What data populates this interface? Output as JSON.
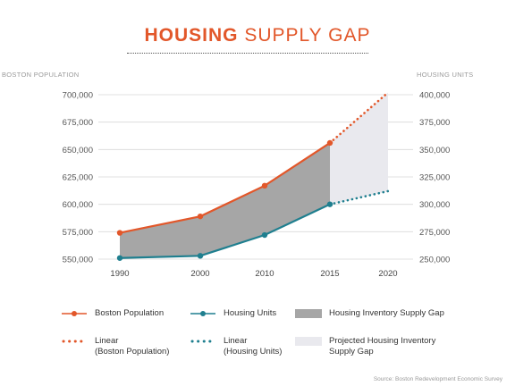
{
  "title": {
    "bold": "HOUSING",
    "light": "SUPPLY GAP"
  },
  "left_axis_title": "BOSTON POPULATION",
  "right_axis_title": "HOUSING UNITS",
  "source": "Source: Boston Redevelopment Economic Survey",
  "colors": {
    "population": "#e2572a",
    "housing": "#1f7f8f",
    "gap": "#a6a6a6",
    "projected_gap": "#e9e9ee"
  },
  "legend": [
    {
      "label": "Boston Population",
      "sub": "",
      "type": "line-dot",
      "color": "#e2572a"
    },
    {
      "label": "Housing Units",
      "sub": "",
      "type": "line-dot",
      "color": "#1f7f8f"
    },
    {
      "label": "Housing Inventory Supply Gap",
      "sub": "",
      "type": "box",
      "color": "#a6a6a6"
    },
    {
      "label": "Linear",
      "sub": "(Boston Population)",
      "type": "dots",
      "color": "#e2572a"
    },
    {
      "label": "Linear",
      "sub": "(Housing Units)",
      "type": "dots",
      "color": "#1f7f8f"
    },
    {
      "label": "Projected Housing Inventory",
      "sub": "Supply Gap",
      "type": "box",
      "color": "#e9e9ee"
    }
  ],
  "chart_data": {
    "type": "line",
    "title": "HOUSING SUPPLY GAP",
    "x": [
      "1990",
      "2000",
      "2010",
      "2015",
      "2020"
    ],
    "left_axis": {
      "label": "BOSTON POPULATION",
      "ylim": [
        550000,
        700000
      ],
      "ticks": [
        "700,000",
        "675,000",
        "650,000",
        "625,000",
        "600,000",
        "575,000",
        "550,000"
      ]
    },
    "right_axis": {
      "label": "HOUSING UNITS",
      "ylim": [
        250000,
        400000
      ],
      "ticks": [
        "400,000",
        "375,000",
        "350,000",
        "325,000",
        "300,000",
        "275,000",
        "250,000"
      ]
    },
    "series": [
      {
        "name": "Boston Population",
        "axis": "left",
        "values": [
          574000,
          589000,
          617000,
          656000,
          null
        ]
      },
      {
        "name": "Housing Units",
        "axis": "right",
        "values": [
          251000,
          253000,
          272000,
          300000,
          null
        ]
      },
      {
        "name": "Linear (Boston Population)",
        "axis": "left",
        "style": "dotted",
        "values": [
          null,
          null,
          null,
          656000,
          702000
        ]
      },
      {
        "name": "Linear (Housing Units)",
        "axis": "right",
        "style": "dotted",
        "values": [
          null,
          null,
          null,
          300000,
          312000
        ]
      }
    ],
    "areas": [
      {
        "name": "Housing Inventory Supply Gap",
        "between": [
          "Boston Population",
          "Housing Units"
        ],
        "range": [
          "1990",
          "2015"
        ]
      },
      {
        "name": "Projected Housing Inventory Supply Gap",
        "between": [
          "Linear (Boston Population)",
          "Linear (Housing Units)"
        ],
        "range": [
          "2015",
          "2020"
        ]
      }
    ],
    "grid": true,
    "legend_position": "bottom"
  }
}
